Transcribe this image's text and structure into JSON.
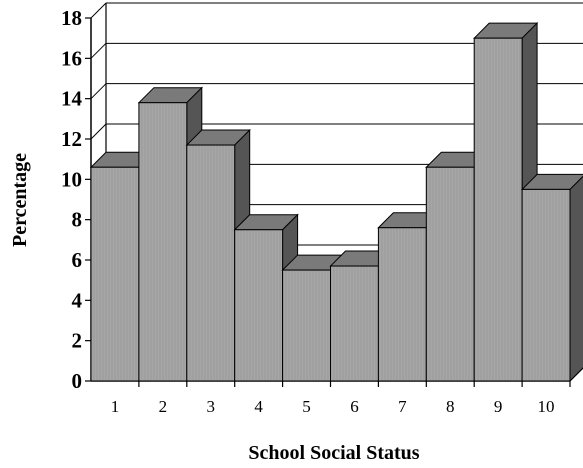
{
  "chart_data": {
    "type": "bar",
    "title": "",
    "xlabel": "School Social Status",
    "ylabel": "Percentage",
    "categories": [
      "1",
      "2",
      "3",
      "4",
      "5",
      "6",
      "7",
      "8",
      "9",
      "10"
    ],
    "values": [
      10.6,
      13.8,
      11.7,
      7.5,
      5.5,
      5.7,
      7.6,
      10.6,
      17.0,
      9.5
    ],
    "ylim": [
      0,
      18
    ],
    "yticks": [
      "0",
      "2",
      "4",
      "6",
      "8",
      "10",
      "12",
      "14",
      "16",
      "18"
    ],
    "grid": true,
    "legend": "none",
    "style": "3d",
    "colors": {
      "bar_front": "#a6a6a6",
      "bar_top": "#7a7a7a",
      "bar_side": "#555555",
      "grid": "#000000"
    }
  }
}
